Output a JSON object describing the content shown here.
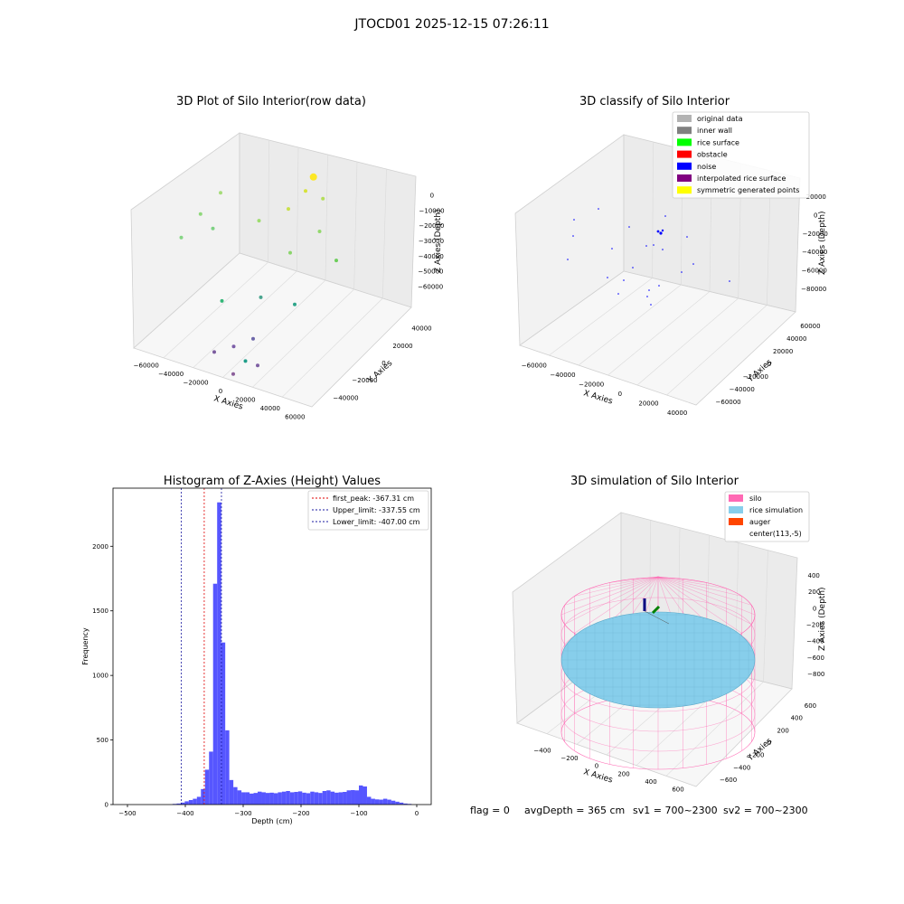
{
  "figure_title": "JTOCD01 2025-12-15 07:26:11",
  "status_line": {
    "flag": "flag = 0",
    "avg_depth": "avgDepth = 365 cm",
    "sv1": "sv1 = 700~2300",
    "sv2": "sv2 = 700~2300"
  },
  "colors": {
    "hist_bar": "#4d4dff",
    "first_peak": "#e00000",
    "limits": "#1a1aa0",
    "silo": "#ff69b4",
    "rice": "#87ceeb",
    "auger": "#ff4500",
    "noise": "#0000ff",
    "original": "#b3b3b3",
    "inner_wall": "#808080",
    "rice_surface": "#00ff00",
    "obstacle": "#ff0000",
    "interpolated": "#800080",
    "symmetric": "#ffff00"
  },
  "chart_data": [
    {
      "type": "scatter3d",
      "title": "3D Plot of Silo Interior(row data)",
      "xlabel": "X Axies",
      "ylabel": "Y Axies",
      "zlabel": "Z Axies (Depth)",
      "xticks": [
        "−60000",
        "−40000",
        "−20000",
        "0",
        "20000",
        "40000",
        "60000"
      ],
      "yticks": [
        "−40000",
        "−20000",
        "0",
        "20000",
        "40000"
      ],
      "zticks": [
        "0",
        "−10000",
        "−20000",
        "−30000",
        "−40000",
        "−50000",
        "−60000"
      ],
      "points": [
        {
          "x": -45000,
          "y": 10000,
          "z": -8000,
          "color": "#a6dc7a"
        },
        {
          "x": -52000,
          "y": 0,
          "z": -15000,
          "color": "#8fd87c"
        },
        {
          "x": -40000,
          "y": -5000,
          "z": -18000,
          "color": "#7ed183"
        },
        {
          "x": -55000,
          "y": -15000,
          "z": -20000,
          "color": "#86d584"
        },
        {
          "x": -15000,
          "y": 5000,
          "z": -15000,
          "color": "#9ddc6e"
        },
        {
          "x": -5000,
          "y": 20000,
          "z": -15000,
          "color": "#c9e04a"
        },
        {
          "x": 0,
          "y": 30000,
          "z": -10000,
          "color": "#d6e23a"
        },
        {
          "x": 2000,
          "y": 35000,
          "z": -5000,
          "color": "#fde725"
        },
        {
          "x": 12000,
          "y": 30000,
          "z": -12000,
          "color": "#b5de5a"
        },
        {
          "x": 20000,
          "y": 15000,
          "z": -20000,
          "color": "#93d86d"
        },
        {
          "x": 35000,
          "y": 10000,
          "z": -30000,
          "color": "#6ccd5a"
        },
        {
          "x": 10000,
          "y": 0,
          "z": -25000,
          "color": "#8bd56b"
        },
        {
          "x": -20000,
          "y": -25000,
          "z": -42000,
          "color": "#35b779"
        },
        {
          "x": 0,
          "y": -15000,
          "z": -42000,
          "color": "#4aa58f"
        },
        {
          "x": 20000,
          "y": -10000,
          "z": -45000,
          "color": "#2fa58a"
        },
        {
          "x": 5000,
          "y": -30000,
          "z": -55000,
          "color": "#6d66a9"
        },
        {
          "x": -5000,
          "y": -35000,
          "z": -58000,
          "color": "#7c5ea8"
        },
        {
          "x": -15000,
          "y": -40000,
          "z": -60000,
          "color": "#7b5b9e"
        },
        {
          "x": 10000,
          "y": -45000,
          "z": -58000,
          "color": "#1f9e89"
        },
        {
          "x": 15000,
          "y": -40000,
          "z": -62000,
          "color": "#7e5fa3"
        },
        {
          "x": 5000,
          "y": -50000,
          "z": -63000,
          "color": "#8a5e9a"
        }
      ]
    },
    {
      "type": "scatter3d",
      "title": "3D classify of Silo Interior",
      "xlabel": "X Axies",
      "ylabel": "Y Axies",
      "zlabel": "Z Axies (Depth)",
      "xticks": [
        "−60000",
        "−40000",
        "−20000",
        "0",
        "20000",
        "40000"
      ],
      "yticks": [
        "−60000",
        "−40000",
        "−20000",
        "0",
        "20000",
        "40000",
        "60000"
      ],
      "zticks": [
        "−80000",
        "−60000",
        "−40000",
        "−20000",
        "0",
        "20000"
      ],
      "legend": [
        {
          "label": "original data",
          "color": "#b3b3b3"
        },
        {
          "label": "inner wall",
          "color": "#808080"
        },
        {
          "label": "rice surface",
          "color": "#00ff00"
        },
        {
          "label": "obstacle",
          "color": "#ff0000"
        },
        {
          "label": "noise",
          "color": "#0000ff"
        },
        {
          "label": "interpolated rice surface",
          "color": "#800080"
        },
        {
          "label": "symmetric generated points",
          "color": "#ffff00"
        }
      ],
      "legend_position": "top-right"
    },
    {
      "type": "bar",
      "title": "Histogram of Z-Axies (Height) Values",
      "xlabel": "Depth (cm)",
      "ylabel": "Frequency",
      "xlim": [
        -525,
        25
      ],
      "ylim": [
        0,
        2450
      ],
      "xticks": [
        -500,
        -400,
        -300,
        -200,
        -100,
        0
      ],
      "yticks": [
        0,
        500,
        1000,
        1500,
        2000
      ],
      "bin_width": 7,
      "bins": [
        {
          "x": -470,
          "v": 5
        },
        {
          "x": -463,
          "v": 8
        },
        {
          "x": -456,
          "v": 15
        },
        {
          "x": -449,
          "v": 25
        },
        {
          "x": -442,
          "v": 35
        },
        {
          "x": -435,
          "v": 45
        },
        {
          "x": -428,
          "v": 60
        },
        {
          "x": -421,
          "v": 120
        },
        {
          "x": -414,
          "v": 270
        },
        {
          "x": -407,
          "v": 410
        },
        {
          "x": -400,
          "v": 1710
        },
        {
          "x": -393,
          "v": 2340
        },
        {
          "x": -386,
          "v": 1255
        },
        {
          "x": -379,
          "v": 575
        },
        {
          "x": -372,
          "v": 190
        },
        {
          "x": -365,
          "v": 135
        },
        {
          "x": -358,
          "v": 110
        },
        {
          "x": -351,
          "v": 95
        },
        {
          "x": -344,
          "v": 95
        },
        {
          "x": -337,
          "v": 85
        },
        {
          "x": -330,
          "v": 90
        },
        {
          "x": -323,
          "v": 100
        },
        {
          "x": -316,
          "v": 95
        },
        {
          "x": -309,
          "v": 90
        },
        {
          "x": -302,
          "v": 92
        },
        {
          "x": -295,
          "v": 88
        },
        {
          "x": -288,
          "v": 95
        },
        {
          "x": -281,
          "v": 100
        },
        {
          "x": -274,
          "v": 105
        },
        {
          "x": -267,
          "v": 95
        },
        {
          "x": -260,
          "v": 98
        },
        {
          "x": -253,
          "v": 102
        },
        {
          "x": -246,
          "v": 92
        },
        {
          "x": -239,
          "v": 88
        },
        {
          "x": -232,
          "v": 100
        },
        {
          "x": -225,
          "v": 95
        },
        {
          "x": -218,
          "v": 90
        },
        {
          "x": -211,
          "v": 105
        },
        {
          "x": -204,
          "v": 110
        },
        {
          "x": -197,
          "v": 100
        },
        {
          "x": -190,
          "v": 92
        },
        {
          "x": -183,
          "v": 95
        },
        {
          "x": -176,
          "v": 98
        },
        {
          "x": -169,
          "v": 110
        },
        {
          "x": -162,
          "v": 112
        },
        {
          "x": -155,
          "v": 110
        },
        {
          "x": -148,
          "v": 148
        },
        {
          "x": -141,
          "v": 140
        },
        {
          "x": -134,
          "v": 60
        },
        {
          "x": -127,
          "v": 45
        },
        {
          "x": -120,
          "v": 40
        },
        {
          "x": -113,
          "v": 38
        },
        {
          "x": -106,
          "v": 45
        },
        {
          "x": -99,
          "v": 38
        },
        {
          "x": -92,
          "v": 30
        },
        {
          "x": -85,
          "v": 22
        },
        {
          "x": -78,
          "v": 15
        },
        {
          "x": -71,
          "v": 8
        },
        {
          "x": -64,
          "v": 5
        }
      ],
      "vlines": [
        {
          "label": "first_peak: -367.31 cm",
          "x": -367.31,
          "color": "#e00000"
        },
        {
          "label": "Upper_limit: -337.55 cm",
          "x": -337.55,
          "color": "#1a1aa0"
        },
        {
          "label": "Lower_limit: -407.00 cm",
          "x": -407.0,
          "color": "#1a1aa0"
        }
      ],
      "legend_position": "top-right"
    },
    {
      "type": "surface3d",
      "title": "3D simulation of Silo Interior",
      "xlabel": "X Axies",
      "ylabel": "Y Axies",
      "zlabel": "Z Axies (Depth)",
      "xticks": [
        "−400",
        "−200",
        "0",
        "200",
        "400",
        "600"
      ],
      "yticks": [
        "−600",
        "−400",
        "−200",
        "0",
        "200",
        "400",
        "600"
      ],
      "zticks": [
        "400",
        "200",
        "0",
        "−200",
        "−400",
        "−600",
        "−800"
      ],
      "legend": [
        {
          "label": "silo",
          "color": "#ff69b4"
        },
        {
          "label": "rice simulation",
          "color": "#87ceeb"
        },
        {
          "label": "auger",
          "color": "#ff4500"
        },
        {
          "label": "center(113,-5)",
          "color": ""
        }
      ],
      "legend_position": "top-right"
    }
  ]
}
